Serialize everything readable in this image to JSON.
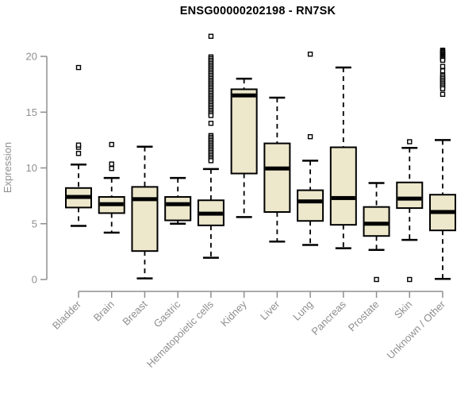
{
  "title": "ENSG00000202198 - RN7SK",
  "colors": {
    "box_fill": "#EDE7CB",
    "box_border": "#000000",
    "median": "#000000",
    "axis": "#8f8f8f",
    "title_text": "#000000",
    "background": "#ffffff"
  },
  "y_axis": {
    "label": "Expression",
    "tick_labels": [
      "0",
      "5",
      "10",
      "15",
      "20"
    ]
  },
  "chart_data": {
    "type": "boxplot",
    "title": "ENSG00000202198 - RN7SK",
    "xlabel": "",
    "ylabel": "Expression",
    "ylim": [
      0,
      22
    ],
    "y_ticks": [
      0,
      5,
      10,
      15,
      20
    ],
    "grid": false,
    "legend": "none",
    "categories": [
      "Bladder",
      "Brain",
      "Breast",
      "Gastric",
      "Hematopoietic cells",
      "Kidney",
      "Liver",
      "Lung",
      "Pancreas",
      "Prostate",
      "Skin",
      "Unknown / Other"
    ],
    "series": [
      {
        "name": "Bladder",
        "whisker_low": 4.8,
        "q1": 6.45,
        "median": 7.4,
        "q3": 8.2,
        "whisker_high": 10.3,
        "outliers": [
          11.3,
          11.85,
          12.05,
          19.0
        ]
      },
      {
        "name": "Brain",
        "whisker_low": 4.2,
        "q1": 5.95,
        "median": 6.75,
        "q3": 7.4,
        "whisker_high": 9.1,
        "outliers": [
          9.95,
          10.35,
          12.1
        ]
      },
      {
        "name": "Breast",
        "whisker_low": 0.1,
        "q1": 2.55,
        "median": 7.2,
        "q3": 8.3,
        "whisker_high": 11.9,
        "outliers": []
      },
      {
        "name": "Gastric",
        "whisker_low": 5.0,
        "q1": 5.3,
        "median": 6.75,
        "q3": 7.4,
        "whisker_high": 9.1,
        "outliers": []
      },
      {
        "name": "Hematopoietic cells",
        "whisker_low": 1.95,
        "q1": 4.85,
        "median": 5.9,
        "q3": 7.1,
        "whisker_high": 9.9,
        "outliers": [
          21.8,
          19.95,
          19.8,
          19.65,
          19.5,
          19.35,
          19.2,
          19.05,
          18.9,
          18.75,
          18.6,
          18.45,
          18.3,
          18.15,
          18.0,
          17.85,
          17.7,
          17.55,
          17.4,
          17.25,
          17.1,
          16.95,
          16.8,
          16.65,
          16.5,
          16.35,
          16.2,
          16.05,
          15.9,
          15.75,
          15.6,
          15.45,
          15.3,
          15.15,
          15.0,
          14.85,
          14.7,
          14.0,
          12.9,
          12.75,
          12.6,
          12.45,
          12.3,
          12.15,
          12.0,
          11.85,
          11.7,
          11.55,
          11.4,
          11.25,
          11.1,
          10.95,
          10.8,
          10.65
        ]
      },
      {
        "name": "Kidney",
        "whisker_low": 5.6,
        "q1": 9.5,
        "median": 16.5,
        "q3": 17.05,
        "whisker_high": 18.0,
        "outliers": []
      },
      {
        "name": "Liver",
        "whisker_low": 3.4,
        "q1": 6.05,
        "median": 9.95,
        "q3": 12.2,
        "whisker_high": 16.3,
        "outliers": []
      },
      {
        "name": "Lung",
        "whisker_low": 3.1,
        "q1": 5.25,
        "median": 7.0,
        "q3": 8.0,
        "whisker_high": 10.65,
        "outliers": [
          12.8,
          20.2
        ]
      },
      {
        "name": "Pancreas",
        "whisker_low": 2.8,
        "q1": 4.9,
        "median": 7.3,
        "q3": 11.85,
        "whisker_high": 19.0,
        "outliers": []
      },
      {
        "name": "Prostate",
        "whisker_low": 2.65,
        "q1": 3.9,
        "median": 5.0,
        "q3": 6.5,
        "whisker_high": 8.65,
        "outliers": [
          0.0
        ]
      },
      {
        "name": "Skin",
        "whisker_low": 3.55,
        "q1": 6.4,
        "median": 7.25,
        "q3": 8.7,
        "whisker_high": 11.8,
        "outliers": [
          12.35,
          0.0
        ]
      },
      {
        "name": "Unknown / Other",
        "whisker_low": 0.05,
        "q1": 4.4,
        "median": 6.05,
        "q3": 7.6,
        "whisker_high": 12.5,
        "outliers": [
          20.55,
          20.45,
          20.35,
          20.25,
          20.15,
          20.05,
          19.95,
          19.85,
          19.75,
          19.65,
          19.1,
          18.7,
          18.3,
          18.15,
          18.0,
          17.85,
          17.7,
          17.55,
          17.4,
          17.25,
          17.1,
          16.6
        ]
      }
    ]
  }
}
